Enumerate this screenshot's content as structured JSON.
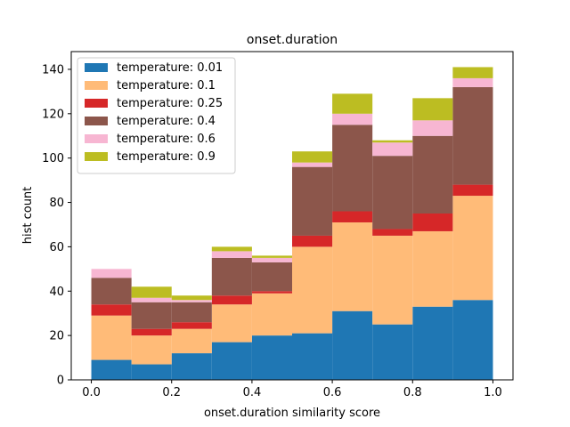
{
  "chart_data": {
    "type": "bar",
    "stacked": true,
    "title": "onset.duration",
    "xlabel": "onset.duration similarity score",
    "ylabel": "hist count",
    "xlim": [
      -0.05,
      1.05
    ],
    "ylim": [
      0,
      148
    ],
    "bin_edges": [
      0.0,
      0.1,
      0.2,
      0.3,
      0.4,
      0.5,
      0.6,
      0.7,
      0.8,
      0.9,
      1.0
    ],
    "x_ticks": [
      0.0,
      0.2,
      0.4,
      0.6,
      0.8,
      1.0
    ],
    "x_tick_labels": [
      "0.0",
      "0.2",
      "0.4",
      "0.6",
      "0.8",
      "1.0"
    ],
    "y_ticks": [
      0,
      20,
      40,
      60,
      80,
      100,
      120,
      140
    ],
    "y_tick_labels": [
      "0",
      "20",
      "40",
      "60",
      "80",
      "100",
      "120",
      "140"
    ],
    "grid": false,
    "legend_position": "top-left",
    "series": [
      {
        "name": "temperature: 0.01",
        "color": "#1f77b4",
        "values": [
          9,
          7,
          12,
          17,
          20,
          21,
          31,
          25,
          33,
          36
        ]
      },
      {
        "name": "temperature: 0.1",
        "color": "#ffbb78",
        "values": [
          20,
          13,
          11,
          17,
          19,
          39,
          40,
          40,
          34,
          47
        ]
      },
      {
        "name": "temperature: 0.25",
        "color": "#d62728",
        "values": [
          5,
          3,
          3,
          4,
          1,
          5,
          5,
          3,
          8,
          5
        ]
      },
      {
        "name": "temperature: 0.4",
        "color": "#8c564b",
        "values": [
          12,
          12,
          9,
          17,
          13,
          31,
          39,
          33,
          35,
          44
        ]
      },
      {
        "name": "temperature: 0.6",
        "color": "#f7b6d2",
        "values": [
          4,
          2,
          1,
          3,
          2,
          2,
          5,
          6,
          7,
          4
        ]
      },
      {
        "name": "temperature: 0.9",
        "color": "#bcbd22",
        "values": [
          0,
          5,
          2,
          2,
          1,
          5,
          9,
          1,
          10,
          5
        ]
      }
    ]
  }
}
